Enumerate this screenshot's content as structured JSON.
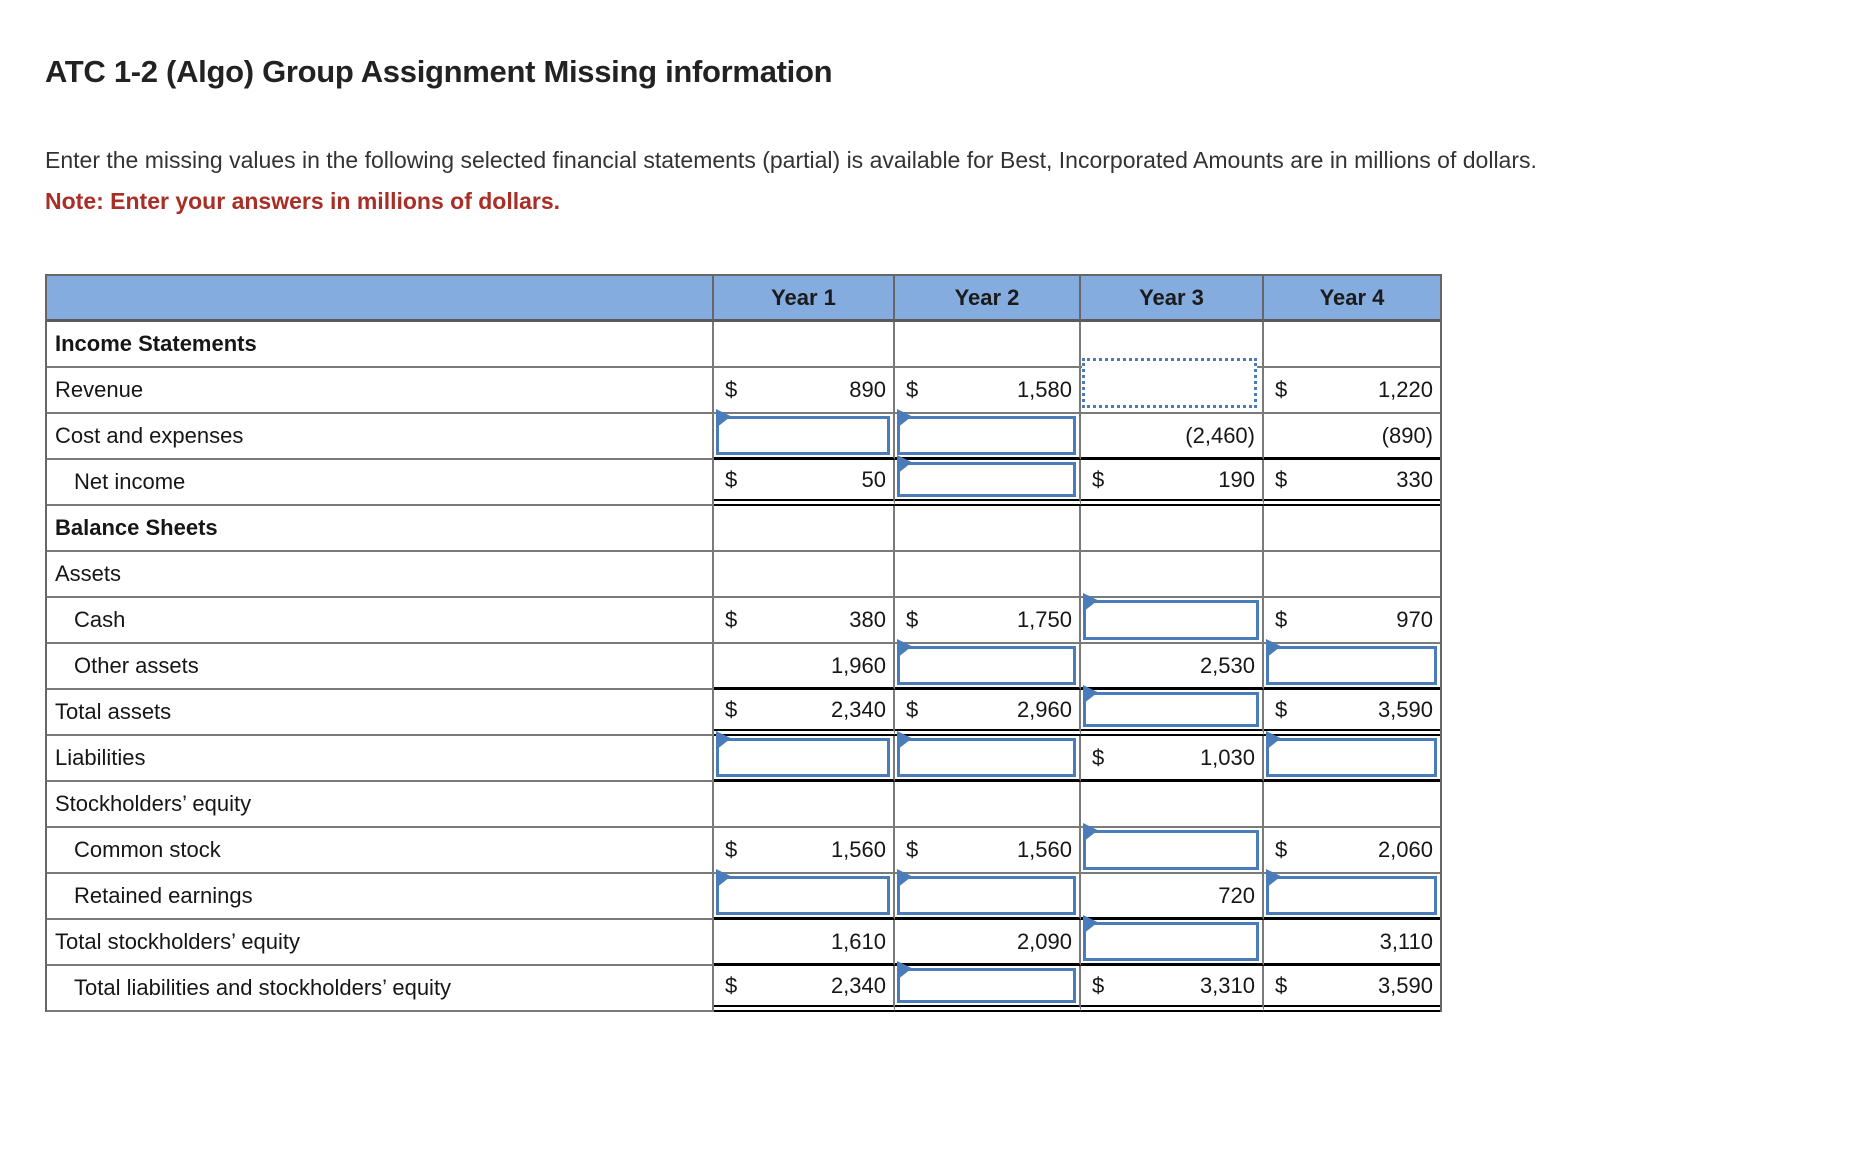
{
  "page": {
    "title": "ATC 1-2 (Algo) Group Assignment Missing information",
    "instructions": "Enter the missing values in the following selected financial statements (partial) is available for Best, Incorporated Amounts are in millions of dollars.",
    "note": "Note: Enter your answers in millions of dollars."
  },
  "colors": {
    "header_blue": "#84acdf",
    "input_border_blue": "#4a7cba",
    "note_red": "#a82e26",
    "grid_gray": "#7a7a7a",
    "rule_black": "#000000"
  },
  "table": {
    "columns": [
      "",
      "Year 1",
      "Year 2",
      "Year 3",
      "Year 4"
    ],
    "rows": [
      {
        "label": "Income Statements",
        "section": true,
        "bottom": "gray",
        "cells": [
          {
            "t": "empty"
          },
          {
            "t": "empty"
          },
          {
            "t": "empty"
          },
          {
            "t": "empty"
          }
        ]
      },
      {
        "label": "Revenue",
        "bottom": "gray",
        "cells": [
          {
            "t": "money",
            "d": "$",
            "v": "890"
          },
          {
            "t": "money",
            "d": "$",
            "v": "1,580"
          },
          {
            "t": "selected"
          },
          {
            "t": "money",
            "d": "$",
            "v": "1,220"
          }
        ]
      },
      {
        "label": "Cost and expenses",
        "bottom": "black",
        "cells": [
          {
            "t": "input"
          },
          {
            "t": "input"
          },
          {
            "t": "num",
            "v": "(2,460)"
          },
          {
            "t": "num",
            "v": "(890)"
          }
        ]
      },
      {
        "label": "Net income",
        "indent": 1,
        "bottom": "double",
        "cells": [
          {
            "t": "money",
            "d": "$",
            "v": "50"
          },
          {
            "t": "input"
          },
          {
            "t": "money",
            "d": "$",
            "v": "190"
          },
          {
            "t": "money",
            "d": "$",
            "v": "330"
          }
        ]
      },
      {
        "label": "Balance Sheets",
        "section": true,
        "bottom": "gray",
        "cells": [
          {
            "t": "empty"
          },
          {
            "t": "empty"
          },
          {
            "t": "empty"
          },
          {
            "t": "empty"
          }
        ]
      },
      {
        "label": "Assets",
        "bottom": "gray",
        "cells": [
          {
            "t": "empty"
          },
          {
            "t": "empty"
          },
          {
            "t": "empty"
          },
          {
            "t": "empty"
          }
        ]
      },
      {
        "label": "Cash",
        "indent": 1,
        "bottom": "gray",
        "cells": [
          {
            "t": "money",
            "d": "$",
            "v": "380"
          },
          {
            "t": "money",
            "d": "$",
            "v": "1,750"
          },
          {
            "t": "input"
          },
          {
            "t": "money",
            "d": "$",
            "v": "970"
          }
        ]
      },
      {
        "label": "Other assets",
        "indent": 1,
        "bottom": "black",
        "cells": [
          {
            "t": "num",
            "v": "1,960"
          },
          {
            "t": "input"
          },
          {
            "t": "num",
            "v": "2,530"
          },
          {
            "t": "input"
          }
        ]
      },
      {
        "label": "Total assets",
        "bottom": "double",
        "cells": [
          {
            "t": "money",
            "d": "$",
            "v": "2,340"
          },
          {
            "t": "money",
            "d": "$",
            "v": "2,960"
          },
          {
            "t": "input"
          },
          {
            "t": "money",
            "d": "$",
            "v": "3,590"
          }
        ]
      },
      {
        "label": "Liabilities",
        "bottom": "black",
        "cells": [
          {
            "t": "input"
          },
          {
            "t": "input"
          },
          {
            "t": "money",
            "d": "$",
            "v": "1,030"
          },
          {
            "t": "input"
          }
        ]
      },
      {
        "label": "Stockholders’ equity",
        "bottom": "gray",
        "cells": [
          {
            "t": "empty"
          },
          {
            "t": "empty"
          },
          {
            "t": "empty"
          },
          {
            "t": "empty"
          }
        ]
      },
      {
        "label": "Common stock",
        "indent": 1,
        "bottom": "gray",
        "cells": [
          {
            "t": "money",
            "d": "$",
            "v": "1,560"
          },
          {
            "t": "money",
            "d": "$",
            "v": "1,560"
          },
          {
            "t": "input"
          },
          {
            "t": "money",
            "d": "$",
            "v": "2,060"
          }
        ]
      },
      {
        "label": "Retained earnings",
        "indent": 1,
        "bottom": "black",
        "cells": [
          {
            "t": "input"
          },
          {
            "t": "input"
          },
          {
            "t": "num",
            "v": "720"
          },
          {
            "t": "input"
          }
        ]
      },
      {
        "label": "Total stockholders’ equity",
        "bottom": "black",
        "cells": [
          {
            "t": "num",
            "v": "1,610"
          },
          {
            "t": "num",
            "v": "2,090"
          },
          {
            "t": "input"
          },
          {
            "t": "num",
            "v": "3,110"
          }
        ]
      },
      {
        "label": "Total liabilities and stockholders’ equity",
        "indent": 1,
        "bottom": "double",
        "cells": [
          {
            "t": "money",
            "d": "$",
            "v": "2,340"
          },
          {
            "t": "input"
          },
          {
            "t": "money",
            "d": "$",
            "v": "3,310"
          },
          {
            "t": "money",
            "d": "$",
            "v": "3,590"
          }
        ]
      }
    ]
  }
}
